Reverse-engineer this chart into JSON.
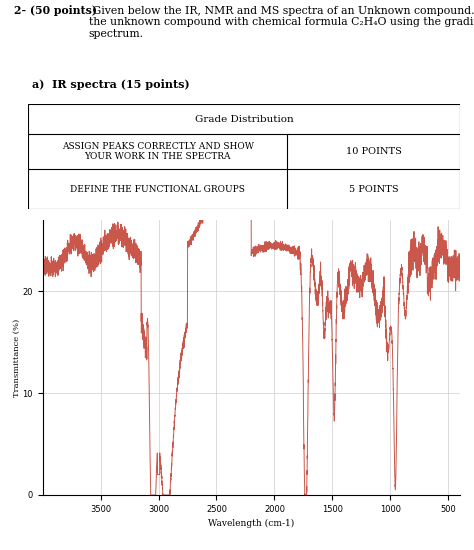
{
  "title_bold": "2- (50 points)",
  "title_rest": " Given below the IR, NMR and MS spectra of an Unknown compound. Identify\nthe unknown compound with chemical formula C₂H₄O using the grading schemes given per each\nspectrum.",
  "section_label": "a)  IR spectra (15 points)",
  "table_header": "Grade Distribution",
  "table_row1_left1": "ASSIGN PEAKS CORRECTLY AND SHOW",
  "table_row1_left2": "YOUR WORK IN THE SPECTRA",
  "table_row1_right": "10 POINTS",
  "table_row2_left": "DEFINE THE FUNCTIONAL GROUPS",
  "table_row2_right": "5 POINTS",
  "ir_xlabel": "Wavelength (cm-1)",
  "ir_ylabel": "Transmittance (%)",
  "ir_yticks": [
    0,
    10,
    20
  ],
  "ir_xticks": [
    3500,
    3000,
    2500,
    2000,
    1500,
    1000,
    500
  ],
  "bg_color": "#ffffff",
  "line_color": "#c0392b",
  "grid_color": "#c8c8c8"
}
